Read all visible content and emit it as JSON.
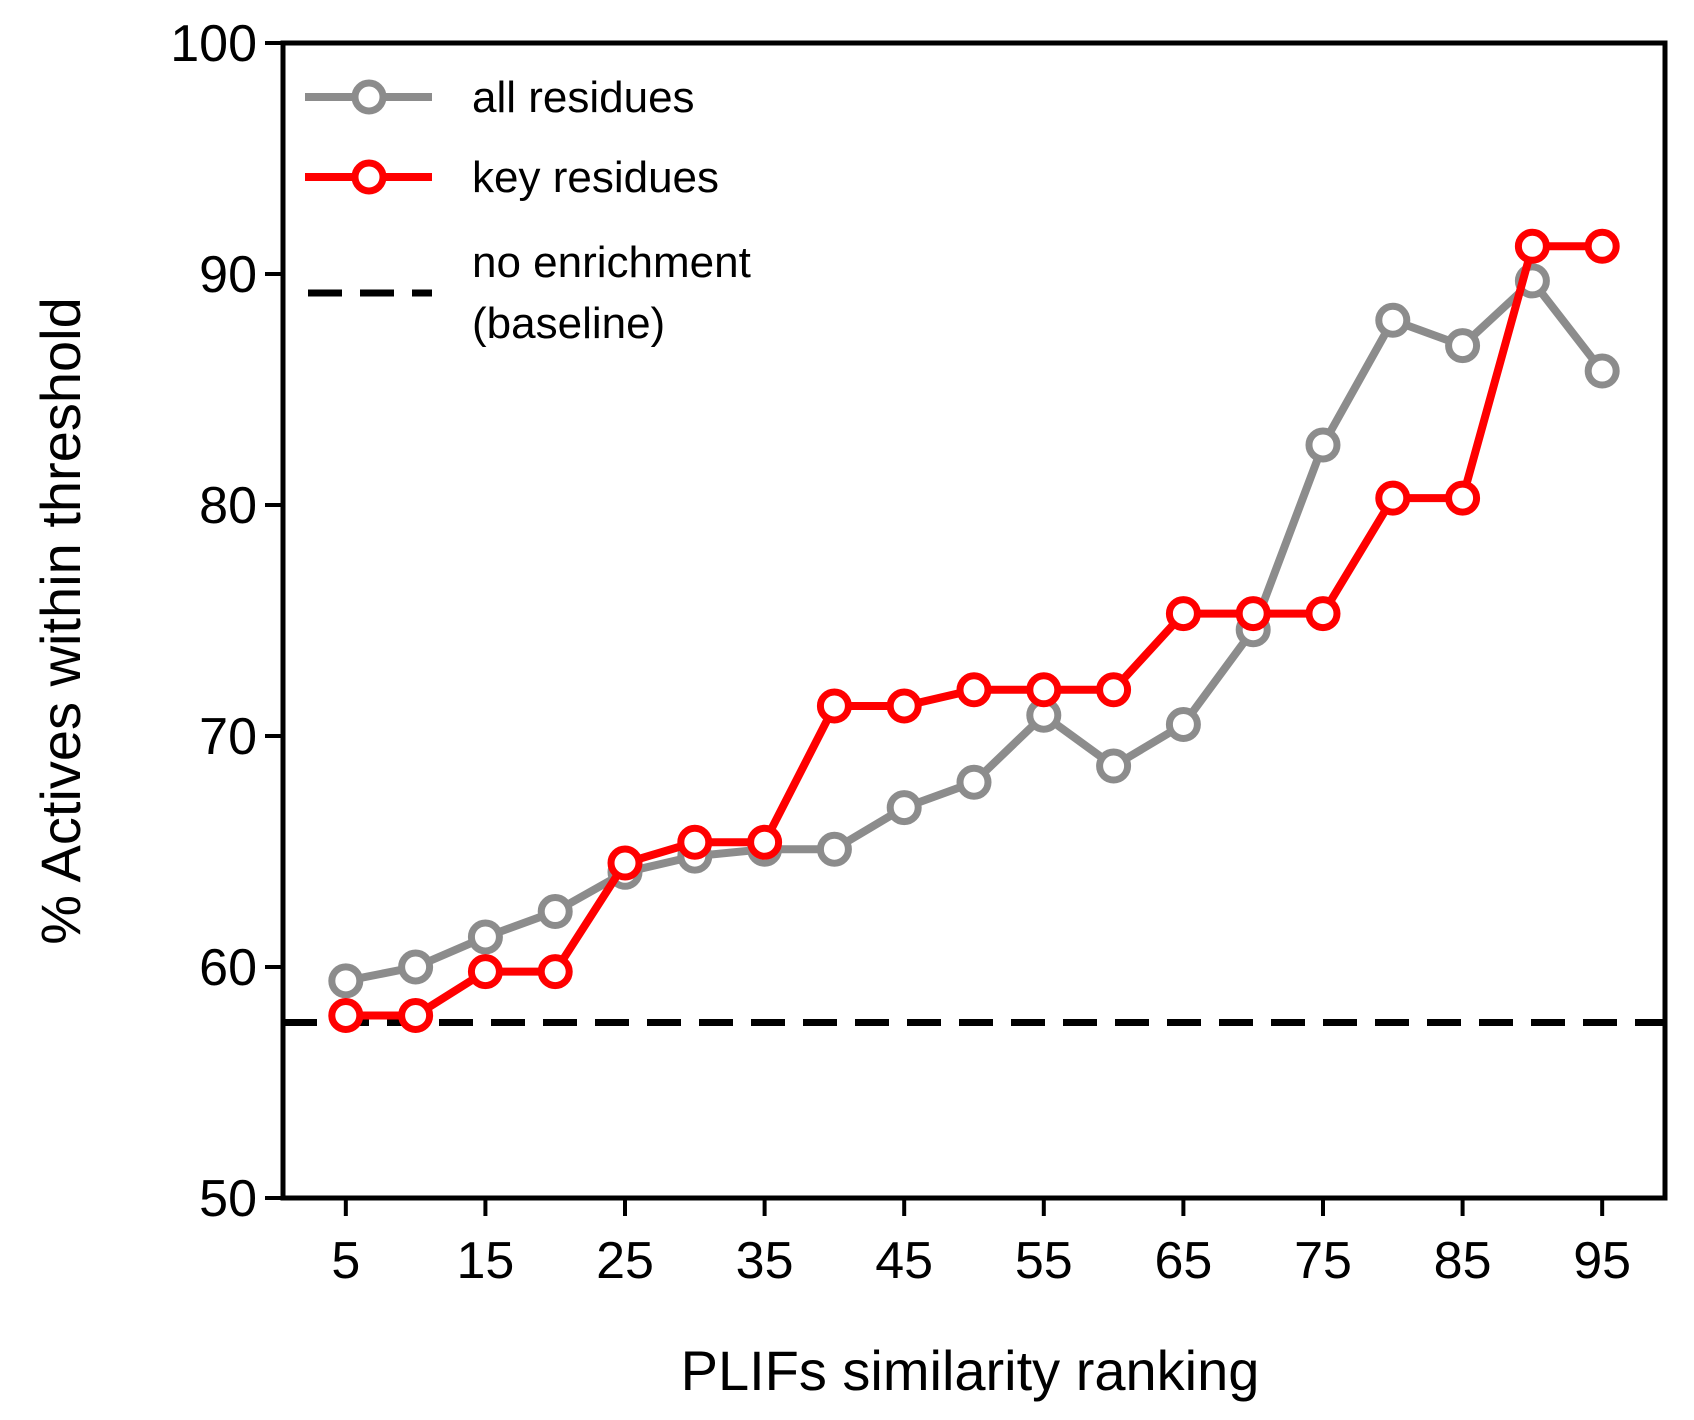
{
  "chart_data": {
    "type": "line",
    "title": "",
    "xlabel": "PLIFs similarity ranking",
    "ylabel": "% Actives within threshold",
    "xlim": [
      0.5,
      99.5
    ],
    "ylim": [
      50,
      100
    ],
    "xticks": [
      5,
      15,
      25,
      35,
      45,
      55,
      65,
      75,
      85,
      95
    ],
    "yticks": [
      50,
      60,
      70,
      80,
      90,
      100
    ],
    "grid": false,
    "legend_position": "top-left",
    "x": [
      5,
      10,
      15,
      20,
      25,
      30,
      35,
      40,
      45,
      50,
      55,
      60,
      65,
      70,
      75,
      80,
      85,
      90,
      95
    ],
    "series": [
      {
        "name": "all residues",
        "color": "#8c8c8c",
        "marker": "open-circle",
        "values": [
          59.4,
          60.0,
          61.3,
          62.4,
          64.1,
          64.8,
          65.1,
          65.1,
          66.9,
          68.0,
          70.9,
          68.7,
          70.5,
          74.6,
          82.6,
          88.0,
          86.9,
          89.7,
          85.8
        ]
      },
      {
        "name": "key residues",
        "color": "#ff0000",
        "marker": "open-circle",
        "values": [
          57.9,
          57.9,
          59.8,
          59.8,
          64.5,
          65.4,
          65.4,
          71.3,
          71.3,
          72.0,
          72.0,
          72.0,
          75.3,
          75.3,
          75.3,
          80.3,
          80.3,
          91.2,
          91.2
        ]
      }
    ],
    "baseline": {
      "name_line1": "no enrichment",
      "name_line2": "(baseline)",
      "value": 57.6,
      "color": "#000000",
      "style": "dashed"
    }
  }
}
